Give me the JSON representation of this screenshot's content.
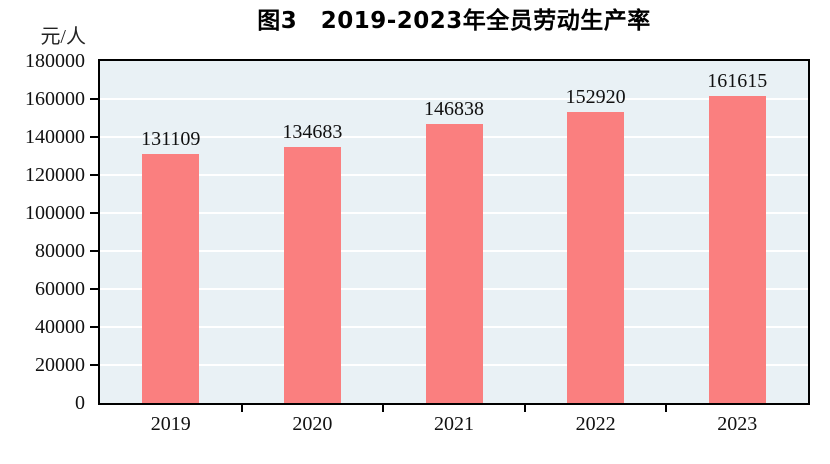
{
  "title": "图3　2019-2023年全员劳动生产率",
  "unit_label": "元/人",
  "colors": {
    "bar": "#fa7f7f",
    "plot_background": "#e9f1f5",
    "gridline": "#ffffff",
    "axis": "#000000",
    "text": "#111111"
  },
  "chart_data": {
    "type": "bar",
    "title": "图3　2019-2023年全员劳动生产率",
    "categories": [
      "2019",
      "2020",
      "2021",
      "2022",
      "2023"
    ],
    "values": [
      131109,
      134683,
      146838,
      152920,
      161615
    ],
    "bar_labels": [
      "131109",
      "134683",
      "146838",
      "152920",
      "161615"
    ],
    "xlabel": "",
    "ylabel": "元/人",
    "ylim": [
      0,
      180000
    ],
    "ytick_step": 20000,
    "ytick_labels": [
      "0",
      "20000",
      "40000",
      "60000",
      "80000",
      "100000",
      "120000",
      "140000",
      "160000",
      "180000"
    ],
    "grid": true,
    "gridline_orientation": "horizontal",
    "legend": false,
    "bar_label_position": "above"
  }
}
